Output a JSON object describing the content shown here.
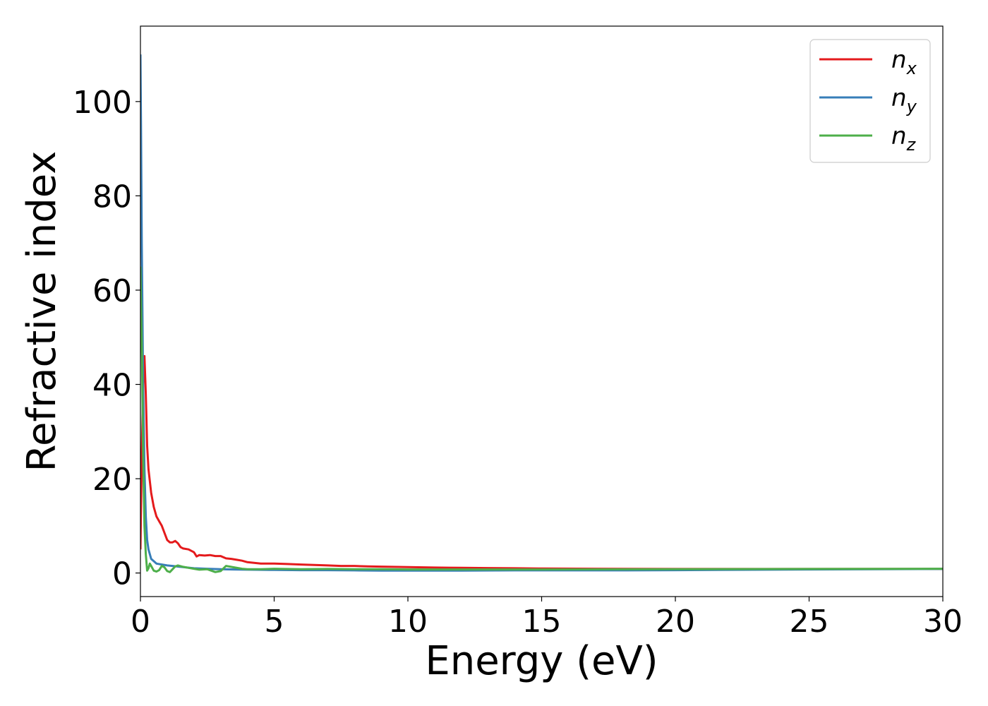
{
  "chart_data": {
    "type": "line",
    "title": "",
    "xlabel": "Energy (eV)",
    "ylabel": "Refractive index",
    "xlim": [
      0,
      30
    ],
    "ylim": [
      -5,
      116
    ],
    "xticks": [
      0,
      5,
      10,
      15,
      20,
      25,
      30
    ],
    "yticks": [
      0,
      20,
      40,
      60,
      80,
      100
    ],
    "grid": false,
    "legend_position": "top-right",
    "series": [
      {
        "name": "n_x",
        "label_base": "n",
        "label_sub": "x",
        "color": "#e41a1c",
        "x": [
          0,
          0.05,
          0.1,
          0.15,
          0.2,
          0.25,
          0.3,
          0.4,
          0.5,
          0.6,
          0.7,
          0.8,
          0.9,
          1.0,
          1.1,
          1.2,
          1.3,
          1.4,
          1.5,
          1.6,
          1.8,
          2.0,
          2.1,
          2.2,
          2.4,
          2.6,
          2.8,
          3.0,
          3.2,
          3.4,
          3.6,
          3.8,
          4.0,
          4.5,
          5.0,
          5.5,
          6.0,
          6.5,
          7.0,
          7.5,
          8.0,
          8.5,
          9.0,
          10.0,
          11.0,
          12.0,
          13.0,
          14.0,
          15.0,
          17.0,
          20.0,
          25.0,
          30.0
        ],
        "y": [
          5,
          25,
          40,
          46,
          38,
          27,
          22,
          17,
          14,
          12,
          11,
          10,
          8.5,
          7,
          6.5,
          6.5,
          6.8,
          6.3,
          5.5,
          5.2,
          5.0,
          4.4,
          3.5,
          3.8,
          3.7,
          3.8,
          3.6,
          3.6,
          3.1,
          3.0,
          2.8,
          2.6,
          2.3,
          2.0,
          2.0,
          1.9,
          1.8,
          1.7,
          1.6,
          1.5,
          1.5,
          1.4,
          1.35,
          1.25,
          1.15,
          1.1,
          1.05,
          1.0,
          0.95,
          0.9,
          0.85,
          0.85,
          0.85
        ]
      },
      {
        "name": "n_y",
        "label_base": "n",
        "label_sub": "y",
        "color": "#377eb8",
        "x": [
          0,
          0.02,
          0.05,
          0.1,
          0.15,
          0.2,
          0.25,
          0.3,
          0.4,
          0.5,
          0.6,
          0.8,
          1.0,
          1.2,
          1.5,
          2.0,
          2.5,
          3.0,
          3.5,
          4.0,
          5.0,
          6.0,
          7.0,
          8.0,
          9.0,
          10.0,
          12.0,
          14.0,
          16.0,
          18.0,
          20.0,
          25.0,
          30.0
        ],
        "y": [
          110,
          95,
          70,
          40,
          22,
          12,
          7,
          5,
          3,
          2.5,
          2.0,
          1.8,
          1.6,
          1.5,
          1.3,
          1.0,
          0.9,
          0.8,
          0.75,
          0.7,
          0.65,
          0.6,
          0.6,
          0.55,
          0.5,
          0.5,
          0.5,
          0.55,
          0.55,
          0.55,
          0.6,
          0.75,
          0.85
        ]
      },
      {
        "name": "n_z",
        "label_base": "n",
        "label_sub": "z",
        "color": "#4daf4a",
        "x": [
          0,
          0.03,
          0.06,
          0.1,
          0.15,
          0.2,
          0.25,
          0.3,
          0.35,
          0.4,
          0.5,
          0.6,
          0.7,
          0.8,
          0.9,
          1.0,
          1.1,
          1.2,
          1.3,
          1.4,
          1.6,
          1.8,
          2.0,
          2.2,
          2.5,
          2.8,
          3.0,
          3.2,
          3.5,
          3.8,
          4.0,
          4.5,
          5.0,
          6.0,
          7.0,
          8.0,
          9.0,
          10.0,
          12.0,
          15.0,
          20.0,
          25.0,
          30.0
        ],
        "y": [
          65,
          55,
          45,
          25,
          10,
          4,
          0.5,
          1.0,
          2.0,
          1.5,
          0.5,
          0.3,
          0.6,
          1.5,
          1.2,
          0.4,
          0.2,
          0.8,
          1.4,
          1.6,
          1.3,
          1.1,
          0.9,
          0.7,
          0.8,
          0.2,
          0.4,
          1.5,
          1.2,
          0.9,
          0.8,
          0.8,
          0.9,
          0.8,
          0.85,
          0.8,
          0.8,
          0.75,
          0.75,
          0.75,
          0.8,
          0.85,
          0.9
        ]
      }
    ]
  }
}
